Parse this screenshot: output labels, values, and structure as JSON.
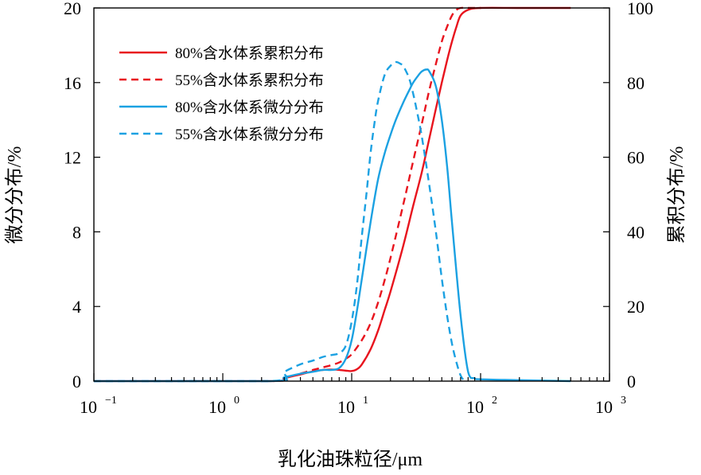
{
  "chart_data": {
    "type": "line",
    "xlabel": "乳化油珠粒径/μm",
    "ylabel_left": "微分分布/%",
    "ylabel_right": "累积分布/%",
    "x_scale": "log",
    "xlim": [
      0.1,
      1000
    ],
    "ylim_left": [
      0,
      20
    ],
    "ylim_right": [
      0,
      100
    ],
    "x_ticks": [
      {
        "value": 0.1,
        "base": "10",
        "exp": "−1"
      },
      {
        "value": 1,
        "base": "10",
        "exp": "0"
      },
      {
        "value": 10,
        "base": "10",
        "exp": "1"
      },
      {
        "value": 100,
        "base": "10",
        "exp": "2"
      },
      {
        "value": 1000,
        "base": "10",
        "exp": "3"
      }
    ],
    "y_left_ticks": [
      "0",
      "4",
      "8",
      "12",
      "16",
      "20"
    ],
    "y_right_ticks": [
      "0",
      "20",
      "40",
      "60",
      "80",
      "100"
    ],
    "grid": false,
    "legend_position": "top-left",
    "series": [
      {
        "name": "80%含水体系累积分布",
        "axis": "right",
        "color": "#e8141e",
        "dash": "solid",
        "x": [
          0.1,
          2.3,
          3,
          4,
          5,
          6,
          7,
          8,
          9,
          10,
          11,
          12,
          14,
          16,
          18,
          20,
          25,
          30,
          35,
          40,
          45,
          50,
          55,
          60,
          65,
          70,
          80,
          100,
          200,
          500
        ],
        "y": [
          0,
          0,
          0.8,
          1.8,
          2.6,
          3.0,
          3.1,
          3.0,
          2.8,
          2.7,
          3.2,
          4.5,
          8.5,
          13.5,
          19,
          24,
          36,
          47,
          56,
          65,
          73,
          80,
          86,
          91,
          95,
          98,
          99.5,
          100,
          100,
          100
        ]
      },
      {
        "name": "55%含水体系累积分布",
        "axis": "right",
        "color": "#e8141e",
        "dash": "dashed",
        "x": [
          0.1,
          2.3,
          3,
          4,
          5,
          6,
          7,
          8,
          9,
          10,
          12,
          14,
          16,
          18,
          20,
          25,
          30,
          35,
          40,
          45,
          50,
          55,
          60,
          65,
          70,
          80,
          100
        ],
        "y": [
          0,
          0,
          0.8,
          2.0,
          3.0,
          3.7,
          4.3,
          5.0,
          6.0,
          7.2,
          11,
          15.5,
          21,
          27,
          33,
          47,
          59,
          69,
          78,
          85,
          91,
          95,
          98,
          99.5,
          100,
          100,
          100
        ]
      },
      {
        "name": "80%含水体系微分分布",
        "axis": "left",
        "color": "#1ba1e2",
        "dash": "solid",
        "x": [
          0.1,
          2.3,
          3,
          4,
          5,
          6,
          7,
          8,
          9,
          10,
          11,
          12,
          14,
          16,
          18,
          20,
          22,
          25,
          28,
          30,
          33,
          35,
          38,
          40,
          45,
          50,
          55,
          60,
          70,
          80,
          90,
          100,
          200,
          500
        ],
        "y": [
          0,
          0,
          0.2,
          0.4,
          0.5,
          0.6,
          0.6,
          0.7,
          1.2,
          2.2,
          3.8,
          5.5,
          8.5,
          10.8,
          12.2,
          13.2,
          14.0,
          14.9,
          15.6,
          16.0,
          16.4,
          16.6,
          16.7,
          16.6,
          15.8,
          14.0,
          11.5,
          8.5,
          3.5,
          0.5,
          0.15,
          0.1,
          0.05,
          0
        ]
      },
      {
        "name": "55%含水体系微分分布",
        "axis": "left",
        "color": "#1ba1e2",
        "dash": "dashed",
        "x": [
          0.1,
          2.3,
          3,
          4,
          5,
          6,
          7,
          8,
          9,
          10,
          11,
          12,
          13,
          14,
          15,
          16,
          18,
          20,
          22,
          24,
          25,
          26,
          28,
          30,
          32,
          35,
          40,
          45,
          50,
          55,
          60,
          65,
          70,
          75
        ],
        "y": [
          0,
          0,
          0.5,
          0.9,
          1.1,
          1.3,
          1.4,
          1.5,
          1.9,
          3.2,
          5.2,
          7.8,
          10.0,
          12.2,
          13.8,
          15.0,
          16.4,
          16.9,
          17.1,
          17.0,
          16.9,
          16.7,
          16.2,
          15.4,
          14.5,
          13.1,
          10.5,
          8.0,
          5.5,
          3.5,
          2.0,
          1.0,
          0.3,
          0
        ]
      }
    ]
  }
}
